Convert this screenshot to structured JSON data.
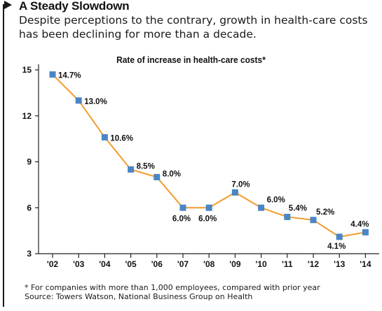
{
  "title": "A Steady Slowdown",
  "subtitle": "Despite perceptions to the contrary, growth in health-care costs has been declining for more than a decade.",
  "footnote": "* For companies with more than 1,000 employees, compared with prior year",
  "source": "Source: Towers Watson, National Business Group on Health",
  "colors": {
    "line": "#f39c2e",
    "marker": "#4a86c5",
    "axis": "#222222",
    "text": "#111111"
  },
  "chart_data": {
    "type": "line",
    "title": "Rate of increase in health-care costs*",
    "xlabel": "",
    "ylabel": "",
    "categories": [
      "'02",
      "'03",
      "'04",
      "'05",
      "'06",
      "'07",
      "'08",
      "'09",
      "'10",
      "'11",
      "'12",
      "'13",
      "'14"
    ],
    "values": [
      14.7,
      13.0,
      10.6,
      8.5,
      8.0,
      6.0,
      6.0,
      7.0,
      6.0,
      5.4,
      5.2,
      4.1,
      4.4
    ],
    "data_labels": [
      "14.7%",
      "13.0%",
      "10.6%",
      "8.5%",
      "8.0%",
      "6.0%",
      "6.0%",
      "7.0%",
      "6.0%",
      "5.4%",
      "5.2%",
      "4.1%",
      "4.4%"
    ],
    "yticks": [
      3,
      6,
      9,
      12,
      15
    ],
    "ylim": [
      3,
      15
    ],
    "grid": false,
    "marker": "square"
  }
}
